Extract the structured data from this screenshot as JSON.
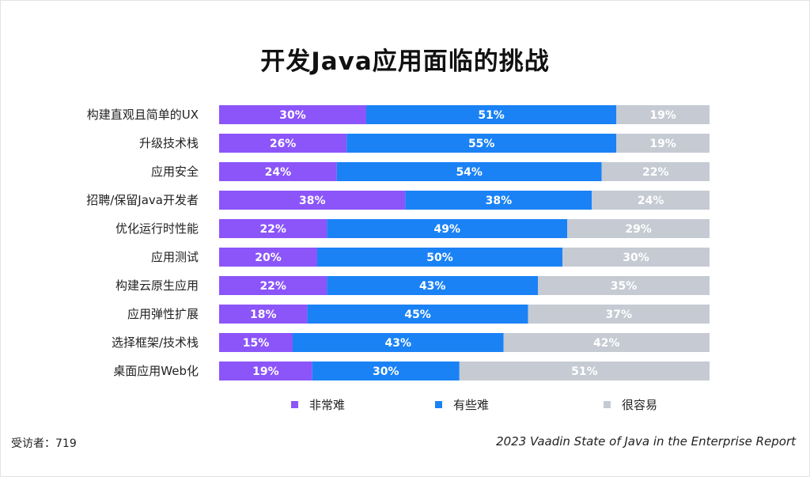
{
  "chart_data": {
    "type": "bar",
    "orientation": "horizontal",
    "stacked": true,
    "title": "开发Java应用面临的挑战",
    "categories": [
      "构建直观且简单的UX",
      "升级技术栈",
      "应用安全",
      "招聘/保留Java开发者",
      "优化运行时性能",
      "应用测试",
      "构建云原生应用",
      "应用弹性扩展",
      "选择框架/技术栈",
      "桌面应用Web化"
    ],
    "series": [
      {
        "name": "非常难",
        "color": "#8b55f9",
        "values": [
          30,
          26,
          24,
          38,
          22,
          20,
          22,
          18,
          15,
          19
        ]
      },
      {
        "name": "有些难",
        "color": "#1a82f5",
        "values": [
          51,
          55,
          54,
          38,
          49,
          50,
          43,
          45,
          43,
          30
        ]
      },
      {
        "name": "很容易",
        "color": "#c5cad3",
        "values": [
          19,
          19,
          22,
          24,
          29,
          30,
          35,
          37,
          42,
          51
        ]
      }
    ],
    "value_suffix": "%",
    "legend_position": "bottom",
    "grid": false
  },
  "footer": {
    "respondents": "受访者：719",
    "source": "2023 Vaadin State of Java in the Enterprise Report"
  }
}
